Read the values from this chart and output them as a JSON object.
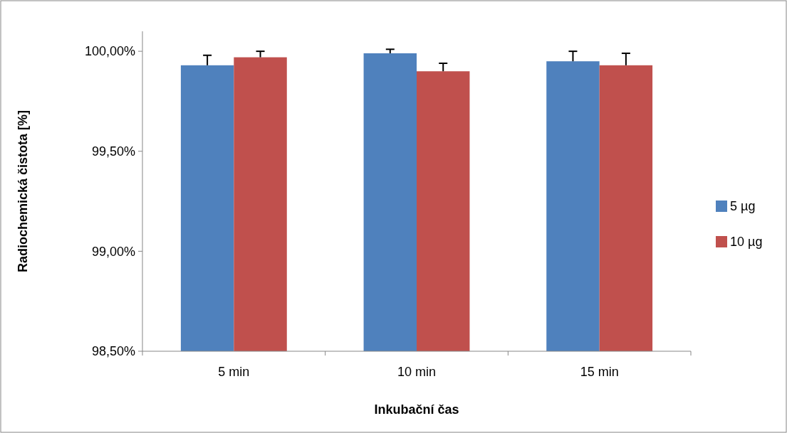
{
  "chart_data": {
    "type": "bar",
    "xlabel": "Inkubační čas",
    "ylabel": "Radiochemická čistota [%]",
    "categories": [
      "5 min",
      "10 min",
      "15 min"
    ],
    "series": [
      {
        "name": "5 µg",
        "color": "#4f81bd",
        "values": [
          99.93,
          99.99,
          99.95
        ],
        "errors": [
          [
            99.93,
            99.98
          ],
          [
            99.99,
            100.01
          ],
          [
            99.95,
            100.0
          ]
        ]
      },
      {
        "name": "10 µg",
        "color": "#c0504d",
        "values": [
          99.97,
          99.9,
          99.93
        ],
        "errors": [
          [
            99.97,
            100.0
          ],
          [
            99.9,
            99.94
          ],
          [
            99.93,
            99.99
          ]
        ]
      }
    ],
    "ylim": [
      98.5,
      100.1
    ],
    "yticks": [
      {
        "value": 98.5,
        "label": "98,50%"
      },
      {
        "value": 99,
        "label": "99,00%"
      },
      {
        "value": 99.5,
        "label": "99,50%"
      },
      {
        "value": 100,
        "label": "100,00%"
      }
    ],
    "grid": false,
    "legend": "right"
  }
}
